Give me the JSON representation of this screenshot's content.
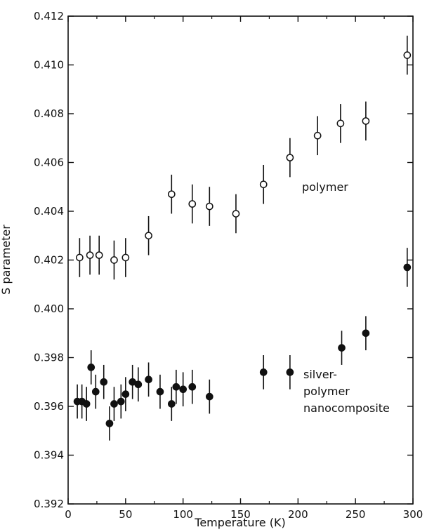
{
  "chart_data": {
    "type": "scatter",
    "title": "",
    "xlabel": "Temperature (K)",
    "ylabel": "S parameter",
    "xlim": [
      0,
      300
    ],
    "ylim": [
      0.392,
      0.412
    ],
    "x_ticks": [
      "0",
      "50",
      "100",
      "150",
      "200",
      "250",
      "300"
    ],
    "y_ticks": [
      "0.392",
      "0.394",
      "0.396",
      "0.398",
      "0.400",
      "0.402",
      "0.404",
      "0.406",
      "0.408",
      "0.410",
      "0.412"
    ],
    "grid": false,
    "legend": "none",
    "series": [
      {
        "name": "polymer",
        "marker": "open-circle",
        "points": [
          {
            "x": 10,
            "y": 0.4021,
            "err": 0.0008
          },
          {
            "x": 19,
            "y": 0.4022,
            "err": 0.0008
          },
          {
            "x": 27,
            "y": 0.4022,
            "err": 0.0008
          },
          {
            "x": 40,
            "y": 0.402,
            "err": 0.0008
          },
          {
            "x": 50,
            "y": 0.4021,
            "err": 0.0008
          },
          {
            "x": 70,
            "y": 0.403,
            "err": 0.0008
          },
          {
            "x": 90,
            "y": 0.4047,
            "err": 0.0008
          },
          {
            "x": 108,
            "y": 0.4043,
            "err": 0.0008
          },
          {
            "x": 123,
            "y": 0.4042,
            "err": 0.0008
          },
          {
            "x": 146,
            "y": 0.4039,
            "err": 0.0008
          },
          {
            "x": 170,
            "y": 0.4051,
            "err": 0.0008
          },
          {
            "x": 193,
            "y": 0.4062,
            "err": 0.0008
          },
          {
            "x": 217,
            "y": 0.4071,
            "err": 0.0008
          },
          {
            "x": 237,
            "y": 0.4076,
            "err": 0.0008
          },
          {
            "x": 259,
            "y": 0.4077,
            "err": 0.0008
          },
          {
            "x": 295,
            "y": 0.4104,
            "err": 0.0008
          }
        ]
      },
      {
        "name": "silver-polymer nanocomposite",
        "marker": "filled-circle",
        "points": [
          {
            "x": 8,
            "y": 0.3962,
            "err": 0.0007
          },
          {
            "x": 12,
            "y": 0.3962,
            "err": 0.0007
          },
          {
            "x": 16,
            "y": 0.3961,
            "err": 0.0007
          },
          {
            "x": 20,
            "y": 0.3976,
            "err": 0.0007
          },
          {
            "x": 24,
            "y": 0.3966,
            "err": 0.0007
          },
          {
            "x": 31,
            "y": 0.397,
            "err": 0.0007
          },
          {
            "x": 36,
            "y": 0.3953,
            "err": 0.0007
          },
          {
            "x": 40,
            "y": 0.3961,
            "err": 0.0007
          },
          {
            "x": 46,
            "y": 0.3962,
            "err": 0.0007
          },
          {
            "x": 50,
            "y": 0.3965,
            "err": 0.0007
          },
          {
            "x": 56,
            "y": 0.397,
            "err": 0.0007
          },
          {
            "x": 61,
            "y": 0.3969,
            "err": 0.0007
          },
          {
            "x": 70,
            "y": 0.3971,
            "err": 0.0007
          },
          {
            "x": 80,
            "y": 0.3966,
            "err": 0.0007
          },
          {
            "x": 90,
            "y": 0.3961,
            "err": 0.0007
          },
          {
            "x": 94,
            "y": 0.3968,
            "err": 0.0007
          },
          {
            "x": 100,
            "y": 0.3967,
            "err": 0.0007
          },
          {
            "x": 108,
            "y": 0.3968,
            "err": 0.0007
          },
          {
            "x": 123,
            "y": 0.3964,
            "err": 0.0007
          },
          {
            "x": 170,
            "y": 0.3974,
            "err": 0.0007
          },
          {
            "x": 193,
            "y": 0.3974,
            "err": 0.0007
          },
          {
            "x": 238,
            "y": 0.3984,
            "err": 0.0007
          },
          {
            "x": 259,
            "y": 0.399,
            "err": 0.0007
          },
          {
            "x": 295,
            "y": 0.4017,
            "err": 0.0008
          }
        ]
      }
    ],
    "annotations": [
      {
        "text": "polymer",
        "series": 0
      },
      {
        "text": "silver-",
        "series": 1
      },
      {
        "text": "polymer",
        "series": 1
      },
      {
        "text": "nanocomposite",
        "series": 1
      }
    ]
  }
}
